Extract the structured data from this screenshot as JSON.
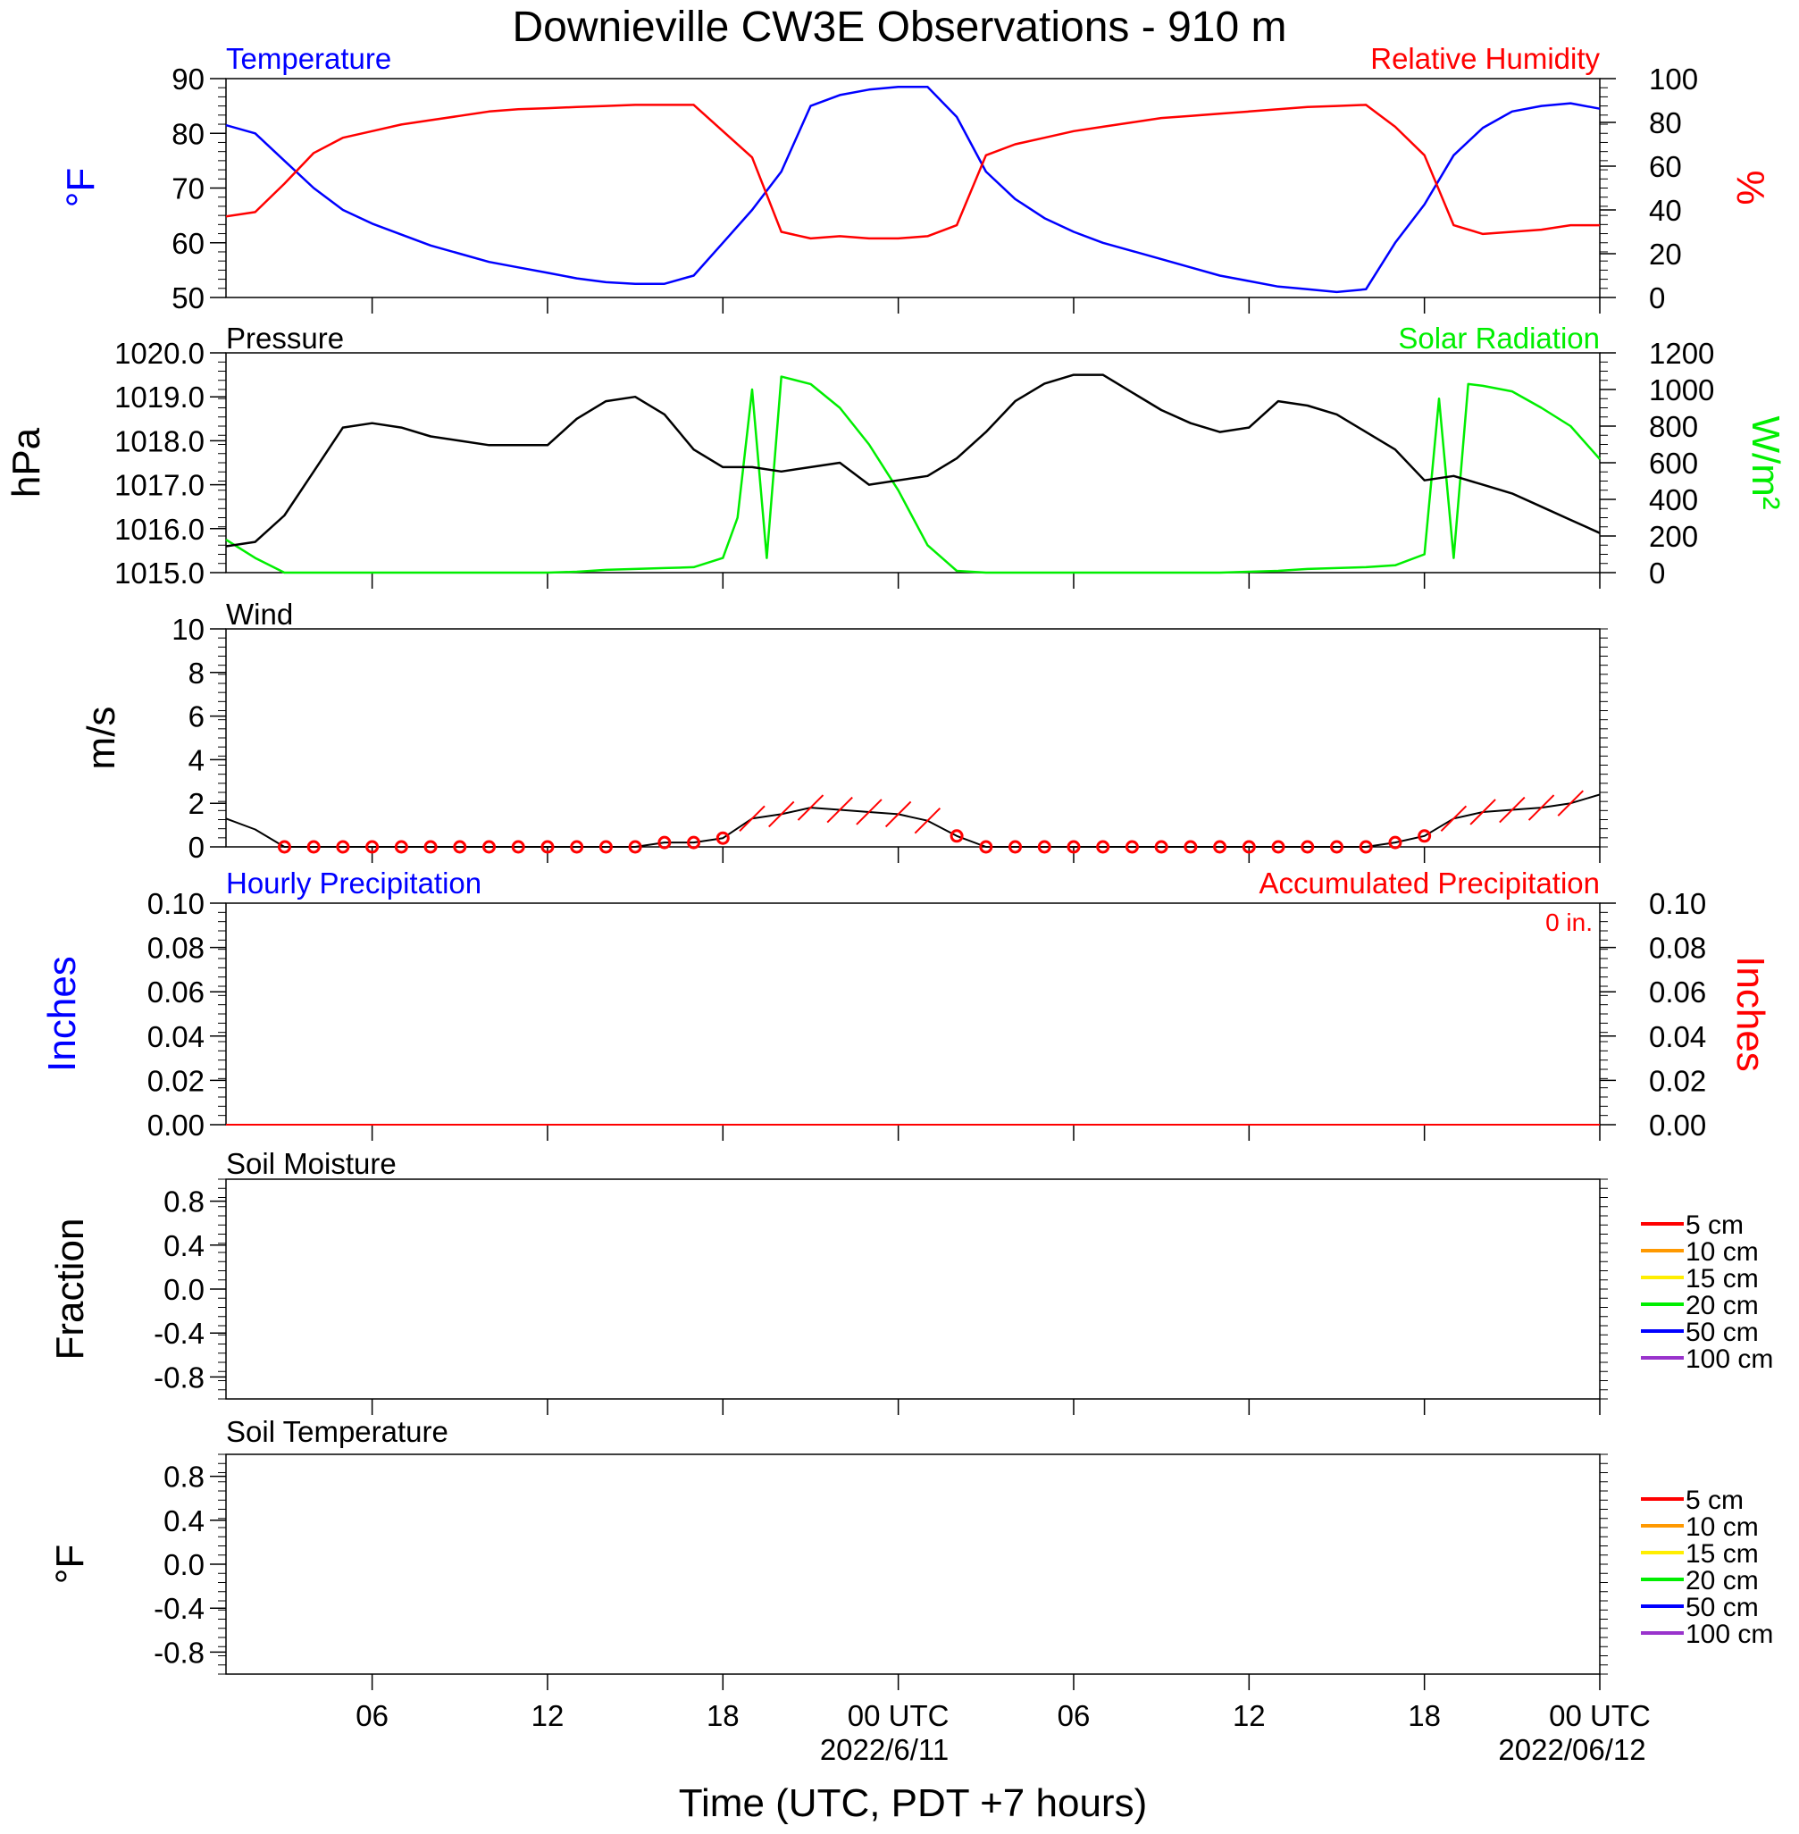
{
  "title": "Downieville CW3E Observations - 910 m",
  "xaxis": {
    "label": "Time (UTC, PDT +7 hours)",
    "tick_labels": [
      "06",
      "12",
      "18",
      "00 UTC",
      "06",
      "12",
      "18",
      "00 UTC"
    ],
    "date_labels": [
      "2022/6/11",
      "2022/06/12"
    ],
    "range_hours": [
      -23,
      24
    ]
  },
  "colors": {
    "temperature": "#0000ff",
    "humidity": "#ff0000",
    "pressure": "#000000",
    "solar": "#00ee00",
    "wind": "#000000",
    "wind_barb": "#ff0000",
    "precip_hourly": "#0000ff",
    "precip_accum": "#ff0000"
  },
  "panels": {
    "temp_rh": {
      "left_title": "Temperature",
      "right_title": "Relative Humidity",
      "left_unit": "oF",
      "right_unit": "%",
      "left_ticks": [
        "90",
        "80",
        "70",
        "60",
        "50"
      ],
      "right_ticks": [
        "100",
        "80",
        "60",
        "40",
        "20",
        "0"
      ]
    },
    "pressure_solar": {
      "left_title": "Pressure",
      "right_title": "Solar Radiation",
      "left_unit": "hPa",
      "right_unit": "W/m2",
      "left_ticks": [
        "1020.0",
        "1019.0",
        "1018.0",
        "1017.0",
        "1016.0",
        "1015.0"
      ],
      "right_ticks": [
        "1200",
        "1000",
        "800",
        "600",
        "400",
        "200",
        "0"
      ]
    },
    "wind": {
      "left_title": "Wind",
      "left_unit": "m/s",
      "left_ticks": [
        "10",
        "8",
        "6",
        "4",
        "2",
        "0"
      ]
    },
    "precip": {
      "left_title": "Hourly Precipitation",
      "right_title": "Accumulated Precipitation",
      "accum_text": "0 in.",
      "left_unit": "Inches",
      "right_unit": "Inches",
      "left_ticks": [
        "0.10",
        "0.08",
        "0.06",
        "0.04",
        "0.02",
        "0.00"
      ],
      "right_ticks": [
        "0.10",
        "0.08",
        "0.06",
        "0.04",
        "0.02",
        "0.00"
      ]
    },
    "soil_moisture": {
      "left_title": "Soil Moisture",
      "left_unit": "Fraction",
      "left_ticks": [
        "0.8",
        "0.4",
        "0.0",
        "-0.4",
        "-0.8"
      ],
      "legend": [
        "5 cm",
        "10 cm",
        "15 cm",
        "20 cm",
        "50 cm",
        "100 cm"
      ]
    },
    "soil_temp": {
      "left_title": "Soil Temperature",
      "left_unit": "oF",
      "left_ticks": [
        "0.8",
        "0.4",
        "0.0",
        "-0.4",
        "-0.8"
      ],
      "legend": [
        "5 cm",
        "10 cm",
        "15 cm",
        "20 cm",
        "50 cm",
        "100 cm"
      ]
    }
  },
  "legend_colors": [
    "#ff0000",
    "#ff9900",
    "#ffee00",
    "#00ee00",
    "#0000ff",
    "#9933cc"
  ],
  "chart_data": [
    {
      "type": "line",
      "title": "Temperature",
      "ylabel": "oF",
      "ylim": [
        50,
        90
      ],
      "x": [
        -23,
        -22,
        -21,
        -20,
        -19,
        -18,
        -17,
        -16,
        -15,
        -14,
        -13,
        -12,
        -11,
        -10,
        -9,
        -8,
        -7,
        -6,
        -5,
        -4,
        -3,
        -2,
        -1,
        0,
        1,
        2,
        3,
        4,
        5,
        6,
        7,
        8,
        9,
        10,
        11,
        12,
        13,
        14,
        15,
        16,
        17,
        18,
        19,
        20,
        21,
        22,
        23,
        24
      ],
      "values": [
        81.5,
        80,
        75,
        70,
        66,
        63.5,
        61.5,
        59.5,
        58,
        56.5,
        55.5,
        54.5,
        53.5,
        52.8,
        52.5,
        52.5,
        54,
        60,
        66,
        73,
        85,
        87,
        88,
        88.5,
        88.5,
        83,
        73,
        68,
        64.5,
        62,
        60,
        58.5,
        57,
        55.5,
        54,
        53,
        52,
        51.5,
        51,
        51.5,
        60,
        67,
        76,
        81,
        84,
        85,
        85.5,
        84.5
      ]
    },
    {
      "type": "line",
      "title": "Relative Humidity",
      "ylabel": "%",
      "ylim": [
        0,
        100
      ],
      "x": [
        -23,
        -22,
        -21,
        -20,
        -19,
        -18,
        -17,
        -16,
        -15,
        -14,
        -13,
        -12,
        -11,
        -10,
        -9,
        -8,
        -7,
        -6,
        -5,
        -4,
        -3,
        -2,
        -1,
        0,
        1,
        2,
        3,
        4,
        5,
        6,
        7,
        8,
        9,
        10,
        11,
        12,
        13,
        14,
        15,
        16,
        17,
        18,
        19,
        20,
        21,
        22,
        23,
        24
      ],
      "values": [
        37,
        39,
        52,
        66,
        73,
        76,
        79,
        81,
        83,
        85,
        86,
        86.5,
        87,
        87.5,
        88,
        88,
        88,
        76,
        64,
        30,
        27,
        28,
        27,
        27,
        28,
        33,
        65,
        70,
        73,
        76,
        78,
        80,
        82,
        83,
        84,
        85,
        86,
        87,
        87.5,
        88,
        78,
        65,
        33,
        29,
        30,
        31,
        33,
        33
      ]
    },
    {
      "type": "line",
      "title": "Pressure",
      "ylabel": "hPa",
      "ylim": [
        1015.0,
        1020.0
      ],
      "x": [
        -23,
        -22,
        -21,
        -20,
        -19,
        -18,
        -17,
        -16,
        -15,
        -14,
        -13,
        -12,
        -11,
        -10,
        -9,
        -8,
        -7,
        -6,
        -5,
        -4,
        -3,
        -2,
        -1,
        0,
        1,
        2,
        3,
        4,
        5,
        6,
        7,
        8,
        9,
        10,
        11,
        12,
        13,
        14,
        15,
        16,
        17,
        18,
        19,
        20,
        21,
        22,
        23,
        24
      ],
      "values": [
        1015.6,
        1015.7,
        1016.3,
        1017.3,
        1018.3,
        1018.4,
        1018.3,
        1018.1,
        1018.0,
        1017.9,
        1017.9,
        1017.9,
        1018.5,
        1018.9,
        1019.0,
        1018.6,
        1017.8,
        1017.4,
        1017.4,
        1017.3,
        1017.4,
        1017.5,
        1017.0,
        1017.1,
        1017.2,
        1017.6,
        1018.2,
        1018.9,
        1019.3,
        1019.5,
        1019.5,
        1019.1,
        1018.7,
        1018.4,
        1018.2,
        1018.3,
        1018.9,
        1018.8,
        1018.6,
        1018.2,
        1017.8,
        1017.1,
        1017.2,
        1017.0,
        1016.8,
        1016.5,
        1016.2,
        1015.9
      ]
    },
    {
      "type": "line",
      "title": "Solar Radiation",
      "ylabel": "W/m2",
      "ylim": [
        0,
        1200
      ],
      "x": [
        -23,
        -22,
        -21,
        -20,
        -19,
        -18,
        -17,
        -16,
        -15,
        -14,
        -13,
        -12,
        -11,
        -10,
        -9,
        -8,
        -7,
        -6,
        -5.5,
        -5,
        -4.5,
        -4,
        -3,
        -2,
        -1,
        0,
        1,
        2,
        3,
        4,
        5,
        6,
        7,
        8,
        9,
        10,
        11,
        12,
        13,
        14,
        15,
        16,
        17,
        18,
        18.5,
        19,
        19.5,
        20,
        21,
        22,
        23,
        24
      ],
      "values": [
        180,
        80,
        0,
        0,
        0,
        0,
        0,
        0,
        0,
        0,
        0,
        0,
        5,
        15,
        20,
        25,
        30,
        80,
        300,
        1000,
        80,
        1070,
        1030,
        900,
        700,
        450,
        150,
        10,
        0,
        0,
        0,
        0,
        0,
        0,
        0,
        0,
        0,
        5,
        10,
        20,
        25,
        30,
        40,
        100,
        950,
        80,
        1030,
        1020,
        990,
        900,
        800,
        620
      ]
    },
    {
      "type": "line",
      "title": "Wind",
      "ylabel": "m/s",
      "ylim": [
        0,
        10
      ],
      "x": [
        -23,
        -22,
        -21,
        -20,
        -19,
        -18,
        -17,
        -16,
        -15,
        -14,
        -13,
        -12,
        -11,
        -10,
        -9,
        -8,
        -7,
        -6,
        -5,
        -4,
        -3,
        -2,
        -1,
        0,
        1,
        2,
        3,
        4,
        5,
        6,
        7,
        8,
        9,
        10,
        11,
        12,
        13,
        14,
        15,
        16,
        17,
        18,
        19,
        20,
        21,
        22,
        23,
        24
      ],
      "values": [
        1.3,
        0.8,
        0,
        0,
        0,
        0,
        0,
        0,
        0,
        0,
        0,
        0,
        0,
        0,
        0,
        0.2,
        0.2,
        0.4,
        1.3,
        1.5,
        1.8,
        1.7,
        1.6,
        1.5,
        1.2,
        0.5,
        0,
        0,
        0,
        0,
        0,
        0,
        0,
        0,
        0,
        0,
        0,
        0,
        0,
        0,
        0.2,
        0.5,
        1.3,
        1.6,
        1.7,
        1.8,
        2.0,
        2.4
      ]
    },
    {
      "type": "line",
      "title": "Hourly Precipitation",
      "ylabel": "Inches",
      "ylim": [
        0,
        0.1
      ],
      "x": [
        -23,
        24
      ],
      "values": [
        0,
        0
      ]
    },
    {
      "type": "line",
      "title": "Soil Moisture",
      "ylabel": "Fraction",
      "ylim": [
        -1,
        1
      ],
      "series": []
    },
    {
      "type": "line",
      "title": "Soil Temperature",
      "ylabel": "oF",
      "ylim": [
        -1,
        1
      ],
      "series": []
    }
  ]
}
